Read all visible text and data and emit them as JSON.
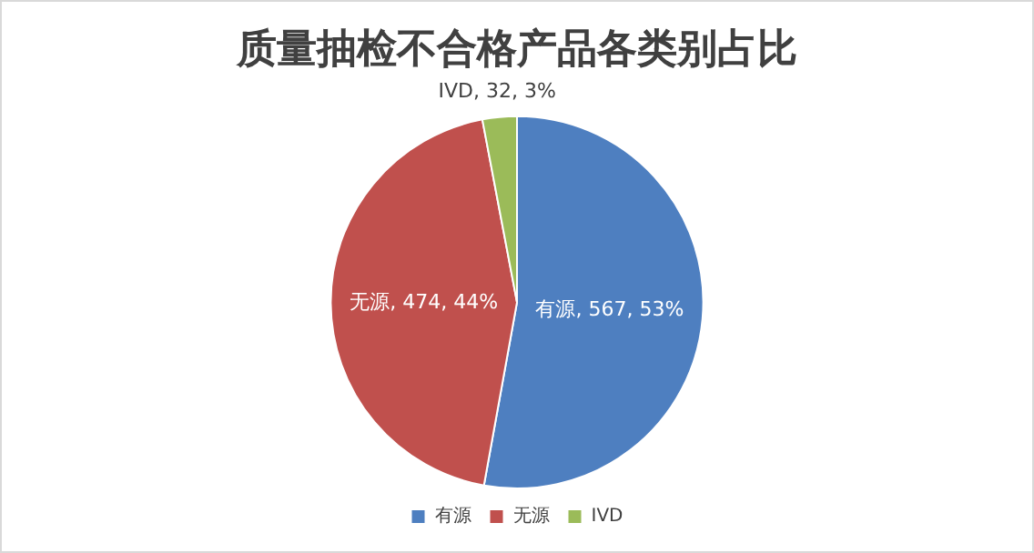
{
  "chart_data": {
    "type": "pie",
    "title": "质量抽检不合格产品各类别占比",
    "categories": [
      "有源",
      "无源",
      "IVD"
    ],
    "values": [
      567,
      474,
      32
    ],
    "colors": [
      "#4e7fc0",
      "#c0504d",
      "#9bbb59"
    ],
    "value_labels": [
      "有源, 567, 53%",
      "无源, 474, 44%",
      "IVD, 32, 3%"
    ],
    "legend": "bottom"
  }
}
